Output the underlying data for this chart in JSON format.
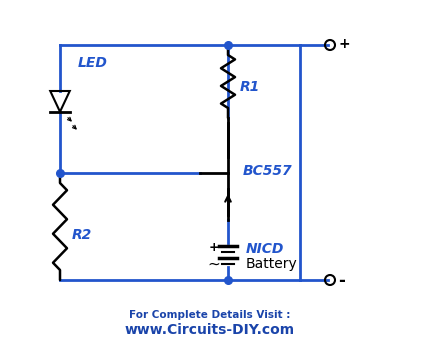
{
  "bg_color": "#ffffff",
  "wire_color": "#2255cc",
  "component_color": "#000000",
  "label_color": "#2255cc",
  "footer_color": "#1a44aa",
  "figsize": [
    4.21,
    3.6
  ],
  "dpi": 100,
  "title_line1": "For Complete Details Visit :",
  "title_line2": "www.Circuits-DIY.com",
  "label_LED": "LED",
  "label_R1": "R1",
  "label_R2": "R2",
  "label_transistor": "BC557",
  "label_battery1": "NICD",
  "label_battery2": "Battery"
}
